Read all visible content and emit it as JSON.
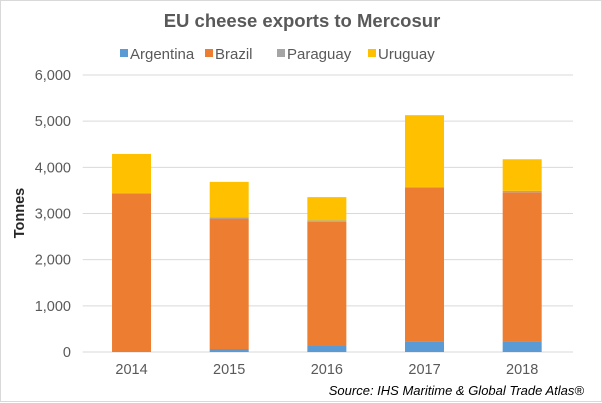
{
  "chart_data": {
    "type": "bar",
    "stacked": true,
    "title": "EU cheese exports to Mercosur",
    "xlabel": "",
    "ylabel": "Tonnes",
    "ylim": [
      0,
      6000
    ],
    "yticks": [
      0,
      1000,
      2000,
      3000,
      4000,
      5000,
      6000
    ],
    "ytick_labels": [
      "0",
      "1,000",
      "2,000",
      "3,000",
      "4,000",
      "5,000",
      "6,000"
    ],
    "grid": true,
    "legend_position": "top",
    "categories": [
      "2014",
      "2015",
      "2016",
      "2017",
      "2018"
    ],
    "series": [
      {
        "name": "Argentina",
        "color": "#5b9bd5",
        "values": [
          20,
          65,
          130,
          225,
          230
        ]
      },
      {
        "name": "Brazil",
        "color": "#ed7d31",
        "values": [
          3405,
          2825,
          2690,
          3330,
          3230
        ]
      },
      {
        "name": "Paraguay",
        "color": "#a5a5a5",
        "values": [
          20,
          30,
          30,
          20,
          30
        ]
      },
      {
        "name": "Uruguay",
        "color": "#ffc000",
        "values": [
          845,
          765,
          505,
          1555,
          685
        ]
      }
    ],
    "source": "Source: IHS Maritime & Global Trade Atlas®"
  }
}
